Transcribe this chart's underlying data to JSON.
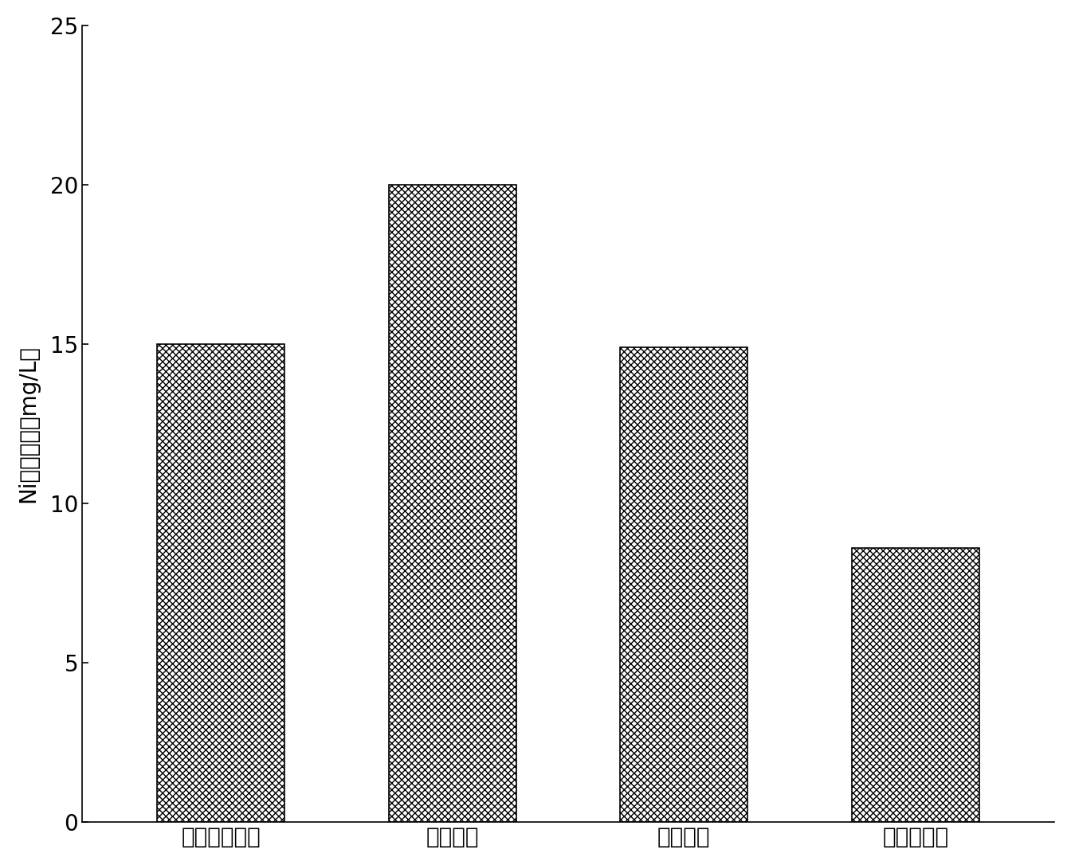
{
  "categories": [
    "填埋控制限値",
    "样品浸出",
    "水泥固化",
    "药剂稳定化"
  ],
  "values": [
    15.0,
    20.0,
    14.9,
    8.6
  ],
  "ylabel": "Ni浸出浓度（mg/L）",
  "ylim": [
    0,
    25
  ],
  "yticks": [
    0,
    5,
    10,
    15,
    20,
    25
  ],
  "bar_color": "#ffffff",
  "bar_edgecolor": "#000000",
  "hatch": "////\\\\\\\\",
  "background_color": "#ffffff",
  "bar_width": 0.55,
  "xlabel_fontsize": 20,
  "ylabel_fontsize": 20,
  "tick_fontsize": 20
}
